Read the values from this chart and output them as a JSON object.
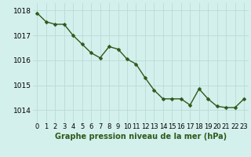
{
  "x": [
    0,
    1,
    2,
    3,
    4,
    5,
    6,
    7,
    8,
    9,
    10,
    11,
    12,
    13,
    14,
    15,
    16,
    17,
    18,
    19,
    20,
    21,
    22,
    23
  ],
  "y": [
    1017.9,
    1017.55,
    1017.45,
    1017.45,
    1017.0,
    1016.65,
    1016.3,
    1016.1,
    1016.55,
    1016.45,
    1016.05,
    1015.85,
    1015.3,
    1014.8,
    1014.45,
    1014.45,
    1014.45,
    1014.2,
    1014.85,
    1014.45,
    1014.15,
    1014.1,
    1014.1,
    1014.45
  ],
  "line_color": "#2d5a1b",
  "marker_color": "#2d5a1b",
  "bg_color": "#d4f0ec",
  "grid_color": "#b8dbd6",
  "title": "Graphe pression niveau de la mer (hPa)",
  "ylim_min": 1013.5,
  "ylim_max": 1018.3,
  "yticks": [
    1014,
    1015,
    1016,
    1017,
    1018
  ],
  "xtick_labels": [
    "0",
    "1",
    "2",
    "3",
    "4",
    "5",
    "6",
    "7",
    "8",
    "9",
    "10",
    "11",
    "12",
    "13",
    "14",
    "15",
    "16",
    "17",
    "18",
    "19",
    "20",
    "21",
    "22",
    "23"
  ],
  "xlabel_fontsize": 6.0,
  "ylabel_fontsize": 6.5,
  "title_fontsize": 7.0,
  "line_width": 1.0,
  "marker_size": 2.5
}
